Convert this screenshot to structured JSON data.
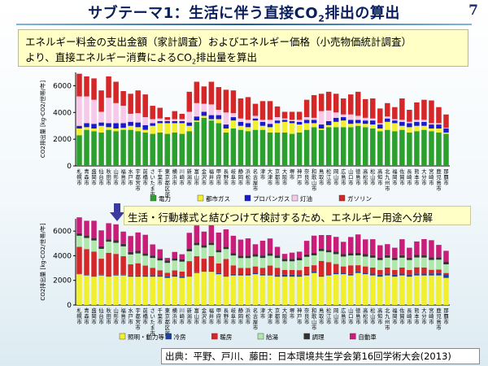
{
  "slide": {
    "title_main": "サブテーマ1：生活に伴う直接CO",
    "title_sub": "2",
    "title_end": "排出の算出",
    "page_number": "7",
    "desc_line1": "エネルギー料金の支出金額（家計調査）およびエネルギー価格（小売物価統計調査）",
    "desc_line2_a": "より、直接エネルギー消費によるCO",
    "desc_line2_sub": "2",
    "desc_line2_b": "排出量を算出",
    "callout": "生活・行動様式と結びつけて検討するため、エネルギー用途へ分解",
    "source": "出典：平野、戸川、藤田：日本環境共生学会第16回学術大会(2013)"
  },
  "chart_data": [
    {
      "type": "bar",
      "stacked": true,
      "ylabel": "CO2排出量 [kg-CO2/世帯/年]",
      "ylim": [
        0,
        7000
      ],
      "yticks": [
        0,
        2000,
        4000,
        6000
      ],
      "legend_position": "bottom",
      "categories": [
        "札幌市",
        "青森市",
        "盛岡市",
        "仙台市",
        "秋田市",
        "山形市",
        "福島市",
        "水戸市",
        "宇都宮市",
        "前橋市",
        "さいたま市",
        "千葉市",
        "東京都区部",
        "横浜市",
        "川崎市",
        "新潟市",
        "富山市",
        "金沢市",
        "福井市",
        "甲府市",
        "長野市",
        "岐阜市",
        "静岡市",
        "浜松市",
        "名古屋市",
        "津市",
        "大津市",
        "京都市",
        "大阪市",
        "堺市",
        "神戸市",
        "奈良市",
        "和歌山市",
        "鳥取市",
        "松江市",
        "岡山市",
        "広島市",
        "山口市",
        "徳島市",
        "高松市",
        "松山市",
        "高知市",
        "北九州市",
        "福岡市",
        "佐賀市",
        "長崎市",
        "熊本市",
        "大分市",
        "宮崎市",
        "鹿児島市",
        "那覇市"
      ],
      "series": [
        {
          "name": "電力",
          "color": "#2ca02c",
          "values": [
            2300,
            2700,
            2600,
            2500,
            2700,
            2600,
            2700,
            2700,
            2600,
            2500,
            2400,
            2500,
            2400,
            2500,
            2400,
            2600,
            3300,
            3600,
            3400,
            3200,
            2500,
            2800,
            2700,
            2600,
            2700,
            2700,
            2500,
            2500,
            2500,
            2400,
            2500,
            2700,
            2900,
            2700,
            2900,
            2900,
            2900,
            2900,
            3000,
            2900,
            2800,
            2600,
            2700,
            2600,
            2700,
            2500,
            2600,
            2700,
            2600,
            2500,
            2400
          ]
        },
        {
          "name": "都市ガス",
          "color": "#f2ef2c",
          "values": [
            500,
            200,
            200,
            500,
            200,
            200,
            150,
            300,
            300,
            200,
            600,
            700,
            800,
            700,
            800,
            400,
            100,
            150,
            100,
            300,
            300,
            600,
            300,
            300,
            700,
            300,
            400,
            700,
            800,
            800,
            600,
            500,
            300,
            100,
            150,
            400,
            500,
            250,
            200,
            250,
            300,
            200,
            600,
            600,
            300,
            400,
            400,
            300,
            200,
            300,
            100
          ]
        },
        {
          "name": "プロパンガス",
          "color": "#1a1acd",
          "values": [
            200,
            300,
            350,
            250,
            300,
            400,
            350,
            300,
            350,
            350,
            200,
            150,
            150,
            150,
            150,
            250,
            300,
            300,
            300,
            300,
            300,
            250,
            300,
            300,
            150,
            300,
            250,
            200,
            150,
            150,
            200,
            250,
            250,
            300,
            300,
            300,
            250,
            300,
            250,
            250,
            300,
            300,
            250,
            200,
            300,
            300,
            300,
            300,
            300,
            300,
            300
          ]
        },
        {
          "name": "灯油",
          "color": "#f8c8e8",
          "values": [
            2200,
            2000,
            1800,
            800,
            1900,
            1500,
            1300,
            600,
            700,
            600,
            300,
            200,
            100,
            150,
            150,
            800,
            1000,
            600,
            800,
            400,
            900,
            300,
            250,
            250,
            200,
            150,
            300,
            250,
            100,
            100,
            150,
            200,
            150,
            1000,
            800,
            400,
            200,
            400,
            300,
            200,
            150,
            100,
            150,
            100,
            150,
            100,
            150,
            150,
            100,
            100,
            50
          ]
        },
        {
          "name": "ガソリン",
          "color": "#d62728",
          "values": [
            1700,
            1500,
            1600,
            1600,
            1600,
            1600,
            1100,
            1500,
            1700,
            1700,
            1000,
            800,
            200,
            600,
            400,
            1500,
            1600,
            1300,
            1700,
            1700,
            1700,
            1700,
            1500,
            1700,
            900,
            1400,
            1400,
            800,
            500,
            600,
            600,
            1300,
            1700,
            1300,
            1400,
            1400,
            1200,
            1500,
            1800,
            1400,
            1500,
            1100,
            1000,
            900,
            1600,
            900,
            1300,
            1500,
            1700,
            1200,
            1000
          ]
        }
      ]
    },
    {
      "type": "bar",
      "stacked": true,
      "ylabel": "CO2排出量 [kg-CO2/世帯/年]",
      "ylim": [
        0,
        7000
      ],
      "yticks": [
        0,
        2000,
        4000,
        6000
      ],
      "legend_position": "bottom",
      "categories": [
        "札幌市",
        "青森市",
        "盛岡市",
        "仙台市",
        "秋田市",
        "山形市",
        "福島市",
        "水戸市",
        "宇都宮市",
        "前橋市",
        "さいたま市",
        "千葉市",
        "東京都区部",
        "横浜市",
        "川崎市",
        "新潟市",
        "富山市",
        "金沢市",
        "福井市",
        "甲府市",
        "長野市",
        "岐阜市",
        "静岡市",
        "浜松市",
        "名古屋市",
        "津市",
        "大津市",
        "京都市",
        "大阪市",
        "堺市",
        "神戸市",
        "奈良市",
        "和歌山市",
        "鳥取市",
        "松江市",
        "岡山市",
        "広島市",
        "山口市",
        "徳島市",
        "高松市",
        "松山市",
        "高知市",
        "北九州市",
        "福岡市",
        "佐賀市",
        "長崎市",
        "熊本市",
        "大分市",
        "宮崎市",
        "鹿児島市",
        "那覇市"
      ],
      "series": [
        {
          "name": "照明・動力等",
          "color": "#f2ef2c",
          "values": [
            2500,
            2400,
            2300,
            2400,
            2300,
            2400,
            2400,
            2300,
            2300,
            2300,
            2300,
            2300,
            2200,
            2300,
            2200,
            2300,
            2600,
            2700,
            2700,
            2500,
            2300,
            2400,
            2400,
            2400,
            2500,
            2400,
            2400,
            2300,
            2300,
            2300,
            2300,
            2400,
            2600,
            2300,
            2400,
            2500,
            2500,
            2400,
            2600,
            2500,
            2400,
            2300,
            2400,
            2300,
            2400,
            2300,
            2400,
            2400,
            2400,
            2400,
            2200
          ]
        },
        {
          "name": "冷房",
          "color": "#1f3f9f",
          "values": [
            20,
            40,
            40,
            60,
            40,
            50,
            60,
            100,
            90,
            100,
            120,
            120,
            120,
            110,
            120,
            60,
            60,
            60,
            70,
            80,
            40,
            120,
            110,
            110,
            130,
            120,
            100,
            120,
            150,
            150,
            130,
            110,
            130,
            80,
            80,
            130,
            130,
            120,
            130,
            130,
            140,
            150,
            140,
            150,
            140,
            150,
            160,
            150,
            160,
            180,
            300
          ]
        },
        {
          "name": "暖房",
          "color": "#d62728",
          "values": [
            2200,
            2100,
            2000,
            1300,
            1900,
            1700,
            1500,
            900,
            1000,
            800,
            600,
            400,
            300,
            400,
            400,
            1200,
            1300,
            1000,
            1200,
            800,
            1400,
            700,
            500,
            500,
            500,
            500,
            700,
            600,
            400,
            400,
            400,
            600,
            500,
            1200,
            1000,
            700,
            500,
            700,
            500,
            500,
            500,
            400,
            500,
            400,
            500,
            400,
            500,
            500,
            300,
            300,
            100
          ]
        },
        {
          "name": "給湯",
          "color": "#aee8aa",
          "values": [
            900,
            900,
            900,
            800,
            900,
            900,
            800,
            800,
            800,
            800,
            800,
            800,
            800,
            800,
            800,
            800,
            900,
            900,
            900,
            900,
            800,
            800,
            800,
            800,
            800,
            800,
            800,
            800,
            700,
            700,
            800,
            800,
            800,
            800,
            800,
            800,
            800,
            800,
            800,
            800,
            800,
            800,
            800,
            800,
            800,
            800,
            800,
            800,
            800,
            800,
            700
          ]
        },
        {
          "name": "調理",
          "color": "#333333",
          "values": [
            200,
            200,
            200,
            200,
            200,
            200,
            200,
            200,
            200,
            200,
            200,
            200,
            200,
            200,
            200,
            200,
            200,
            200,
            200,
            200,
            200,
            200,
            200,
            200,
            200,
            200,
            200,
            200,
            200,
            200,
            200,
            200,
            200,
            200,
            200,
            200,
            200,
            200,
            200,
            200,
            200,
            200,
            200,
            200,
            200,
            200,
            200,
            200,
            200,
            200,
            200
          ]
        },
        {
          "name": "自動車",
          "color": "#c81e7a",
          "values": [
            1300,
            1200,
            1400,
            1300,
            1300,
            1300,
            1000,
            1300,
            1500,
            1500,
            900,
            700,
            200,
            500,
            400,
            1300,
            1400,
            1100,
            1400,
            1400,
            1400,
            1400,
            1300,
            1400,
            800,
            1200,
            1200,
            700,
            400,
            500,
            500,
            1100,
            1400,
            1100,
            1200,
            1200,
            1000,
            1300,
            1500,
            1200,
            1300,
            1000,
            900,
            800,
            1300,
            800,
            1100,
            1300,
            1400,
            1000,
            900
          ]
        }
      ]
    }
  ]
}
